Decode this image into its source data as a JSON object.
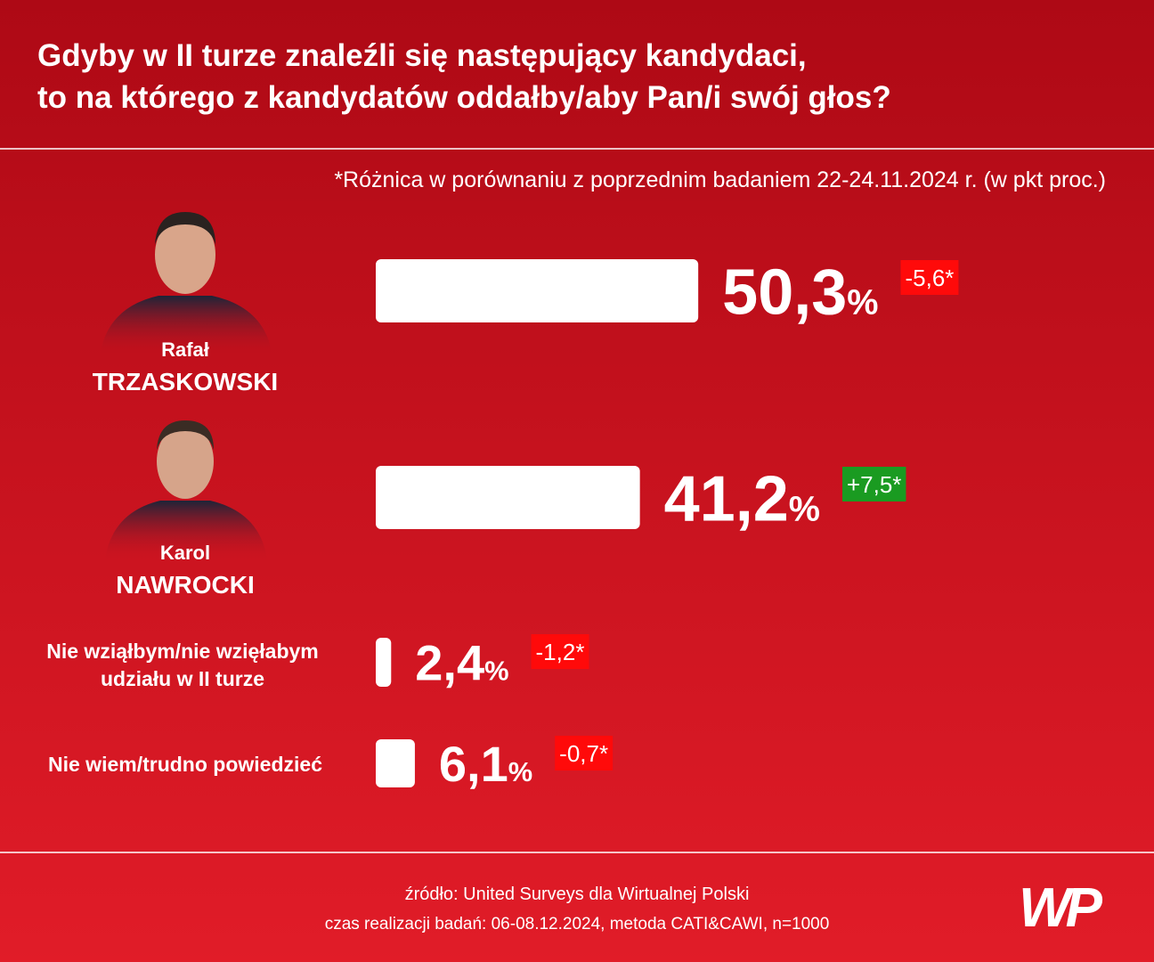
{
  "chart_data": {
    "type": "bar",
    "title": [
      "Gdyby w II turze znaleźli się następujący kandydaci,",
      "to na którego z kandydatów oddałby/aby Pan/i swój głos?"
    ],
    "note": "*Różnica w porównaniu z poprzednim badaniem 22-24.11.2024 r. (w pkt proc.)",
    "categories": [
      [
        "Rafał",
        "TRZASKOWSKI"
      ],
      [
        "Karol",
        "NAWROCKI"
      ],
      [
        "Nie wziąłbym/nie wzięłabym",
        "udziału w II turze"
      ],
      [
        "Nie wiem/trudno powiedzieć"
      ]
    ],
    "values": [
      50.3,
      41.2,
      2.4,
      6.1
    ],
    "value_labels": [
      "50,3%",
      "41,2%",
      "2,4%",
      "6,1%"
    ],
    "color": "#ffffff",
    "changes": [
      -5.6,
      7.5,
      -1.2,
      -0.7
    ],
    "change_labels": [
      "-5,6*",
      "+7,5*",
      "-1,2*",
      "-0,7*"
    ],
    "change_colors": {
      "up": "#1a9b21",
      "down": "#ff0a0a"
    },
    "source": [
      "źródło: United Surveys dla Wirtualnej Polski",
      "czas realizacji badań: 06-08.12.2024, metoda CATI&CAWI, n=1000"
    ],
    "logo": "WP"
  }
}
